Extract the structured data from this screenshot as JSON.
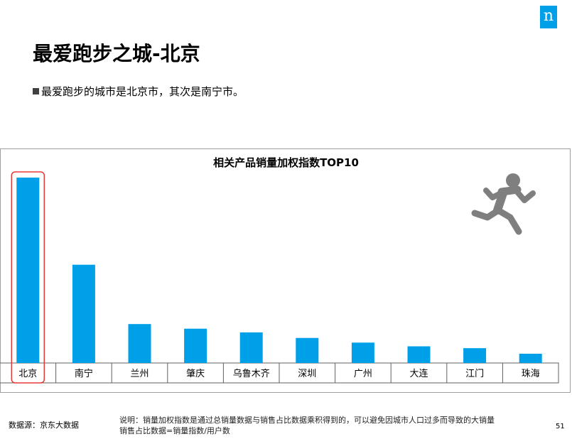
{
  "header": {
    "brand_letter": "n",
    "title": "最爱跑步之城-北京",
    "bullet": "最爱跑步的城市是北京市，其次是南宁市。"
  },
  "icons": {
    "runner": "running-person-icon",
    "brand": "nielsen-logo-icon"
  },
  "colors": {
    "bar": "#00a0e9",
    "highlight": "#e53935",
    "runner": "#7f7f7f"
  },
  "chart_data": {
    "type": "bar",
    "title": "相关产品销量加权指数TOP10",
    "categories": [
      "北京",
      "南宁",
      "兰州",
      "肇庆",
      "乌鲁木齐",
      "深圳",
      "广州",
      "大连",
      "江门",
      "珠海"
    ],
    "values": [
      100,
      53,
      21,
      18.5,
      16.5,
      13.5,
      11,
      9,
      8,
      5
    ],
    "ylim": [
      0,
      100
    ],
    "highlighted_category": "北京",
    "grid": false
  },
  "footer": {
    "source": "数据源：京东大数据",
    "note_line1": "说明：销量加权指数是通过总销量数据与销售占比数据乘积得到的，可以避免因城市人口过多而导致的大销量",
    "note_line2": "销售占比数据=销量指数/用户数",
    "page_number": "51"
  }
}
